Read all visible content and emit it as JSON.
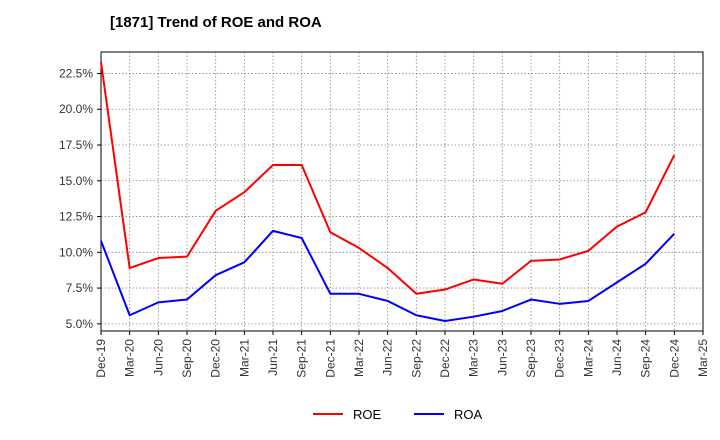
{
  "chart_data": {
    "type": "line",
    "title": "[1871]  Trend of ROE and ROA",
    "xlabel": "",
    "ylabel": "",
    "categories": [
      "Dec-19",
      "Mar-20",
      "Jun-20",
      "Sep-20",
      "Dec-20",
      "Mar-21",
      "Jun-21",
      "Sep-21",
      "Dec-21",
      "Mar-22",
      "Jun-22",
      "Sep-22",
      "Dec-22",
      "Mar-23",
      "Jun-23",
      "Sep-23",
      "Dec-23",
      "Mar-24",
      "Jun-24",
      "Sep-24",
      "Dec-24",
      "Mar-25"
    ],
    "series": [
      {
        "name": "ROE",
        "color": "#ff0000",
        "values": [
          23.3,
          8.9,
          9.6,
          9.7,
          12.9,
          14.2,
          16.1,
          16.1,
          11.4,
          10.3,
          8.9,
          7.1,
          7.4,
          8.1,
          7.8,
          9.4,
          9.5,
          10.1,
          11.8,
          12.8,
          16.8,
          null
        ]
      },
      {
        "name": "ROA",
        "color": "#0000ff",
        "values": [
          10.8,
          5.6,
          6.5,
          6.7,
          8.4,
          9.3,
          11.5,
          11.0,
          7.1,
          7.1,
          6.6,
          5.6,
          5.2,
          5.5,
          5.9,
          6.7,
          6.4,
          6.6,
          7.9,
          9.2,
          11.3,
          null
        ]
      }
    ],
    "yticks": [
      "5.0%",
      "7.5%",
      "10.0%",
      "12.5%",
      "15.0%",
      "17.5%",
      "20.0%",
      "22.5%"
    ],
    "ytick_values": [
      5.0,
      7.5,
      10.0,
      12.5,
      15.0,
      17.5,
      20.0,
      22.5
    ],
    "ylim": [
      4.5,
      24.0
    ],
    "grid": true,
    "legend_position": "bottom-center"
  }
}
